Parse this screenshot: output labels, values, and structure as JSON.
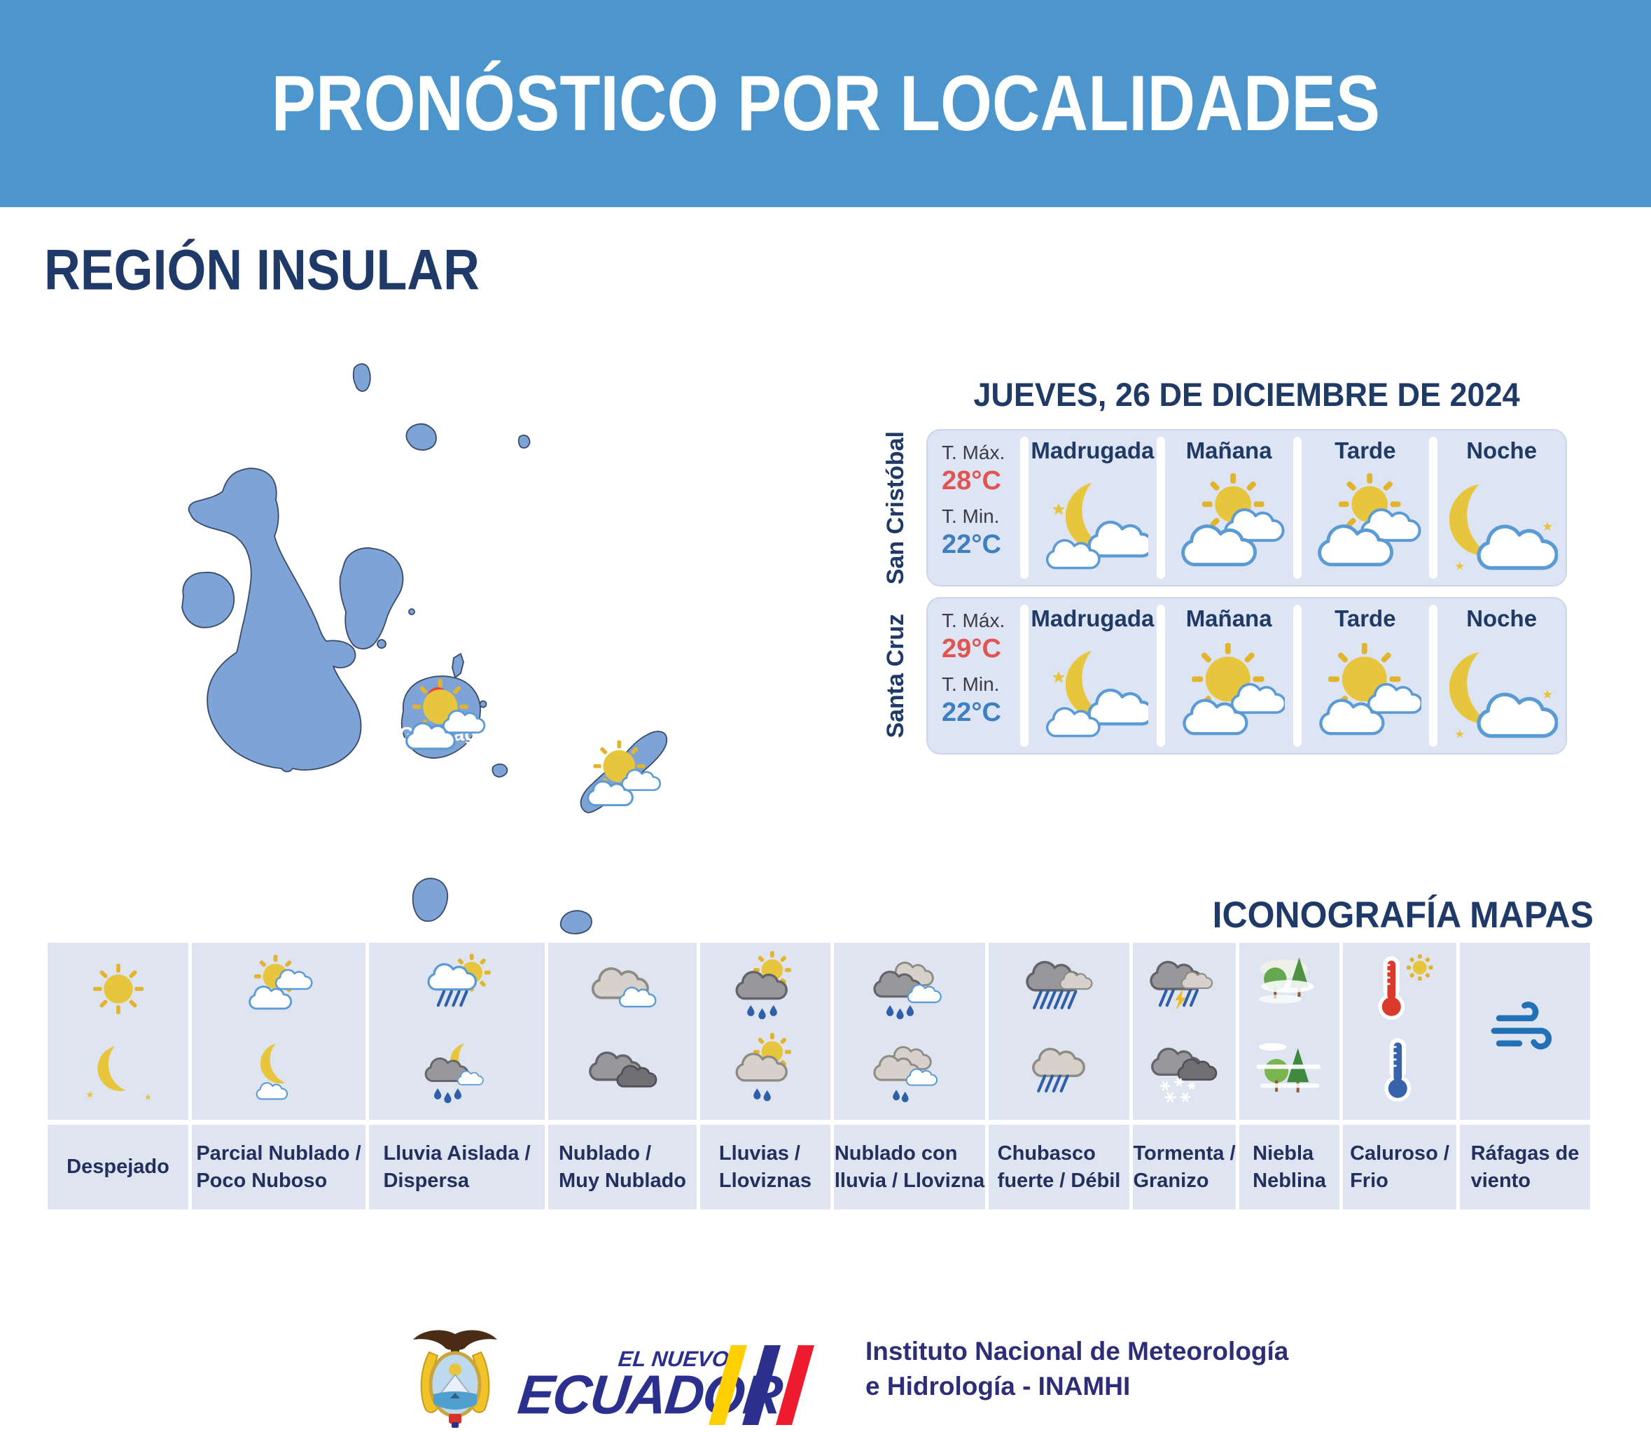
{
  "header": {
    "title": "PRONÓSTICO POR LOCALIDADES"
  },
  "region": {
    "title": "REGIÓN INSULAR"
  },
  "map": {
    "name": "galapagos-archipelago",
    "label": "Galápagos",
    "marker": "location-ring",
    "icons": [
      {
        "island": "Santa Cruz",
        "icon": "sun-clouds"
      },
      {
        "island": "San Cristóbal",
        "icon": "sun-clouds"
      }
    ]
  },
  "forecast": {
    "date": "JUEVES, 26 DE DICIEMBRE DE 2024",
    "temp_max_label": "T. Máx.",
    "temp_min_label": "T. Min.",
    "cards": [
      {
        "location": "San Cristóbal",
        "tmax": "28°C",
        "tmin": "22°C",
        "periods": [
          {
            "label": "Madrugada",
            "icon": "moon-star-clouds"
          },
          {
            "label": "Mañana",
            "icon": "sun-behind-clouds"
          },
          {
            "label": "Tarde",
            "icon": "sun-behind-clouds"
          },
          {
            "label": "Noche",
            "icon": "moon-cloud-night"
          }
        ]
      },
      {
        "location": "Santa Cruz",
        "tmax": "29°C",
        "tmin": "22°C",
        "periods": [
          {
            "label": "Madrugada",
            "icon": "moon-star-clouds"
          },
          {
            "label": "Mañana",
            "icon": "sun-clouds"
          },
          {
            "label": "Tarde",
            "icon": "sun-clouds"
          },
          {
            "label": "Noche",
            "icon": "moon-cloud-night"
          }
        ]
      }
    ]
  },
  "legend": {
    "title": "ICONOGRAFÍA MAPAS",
    "items": [
      {
        "label": "Despejado",
        "icons": [
          "sun",
          "moon-stars"
        ]
      },
      {
        "label": "Parcial Nublado /\nPoco Nuboso",
        "icons": [
          "sun-two-clouds",
          "moon-small-cloud"
        ]
      },
      {
        "label": "Lluvia Aislada /\nDispersa",
        "icons": [
          "sun-raincloud-slashes",
          "moon-darkcloud-drops"
        ]
      },
      {
        "label": "Nublado /\nMuy Nublado",
        "icons": [
          "two-light-clouds",
          "two-dark-clouds"
        ]
      },
      {
        "label": "Lluvias /\nLloviznas",
        "icons": [
          "sun-graycloud-drops3",
          "sun-tancloud-drops2"
        ]
      },
      {
        "label": "Nublado con\nlluvia / Llovizna",
        "icons": [
          "clouds-rain3",
          "clouds-rain2"
        ]
      },
      {
        "label": "Chubasco\nfuerte / Débil",
        "icons": [
          "cloud-heavy-rain",
          "cloud-light-rain"
        ]
      },
      {
        "label": "Tormenta /\nGranizo",
        "icons": [
          "storm-lightning",
          "clouds-hail"
        ]
      },
      {
        "label": "Niebla\nNeblina",
        "icons": [
          "trees-fog-1",
          "trees-fog-2"
        ]
      },
      {
        "label": "Caluroso /\nFrio",
        "icons": [
          "thermo-hot",
          "thermo-cold"
        ]
      },
      {
        "label": "Ráfagas de\nviento",
        "icons": [
          "wind"
        ]
      }
    ]
  },
  "footer": {
    "emblem": "ecuador-coat-of-arms",
    "brand_top": "EL NUEVO",
    "brand_main": "ECUADOR",
    "org_line1": "Instituto Nacional de Meteorología",
    "org_line2": "e Hidrología - INAMHI"
  },
  "colors": {
    "banner": "#4d96cd",
    "navy": "#1f3a68",
    "card_bg": "#dde4f3",
    "table_bg": "#dfe4f1",
    "temp_max": "#e05451",
    "temp_min": "#3e7fc1",
    "island": "#7ea3d7",
    "gold": "#e7c53c",
    "marker": "#e8453c",
    "brand": "#2b2f8e",
    "stripe_yellow": "#ffcf00",
    "stripe_blue": "#2d2f8f",
    "stripe_red": "#ee1b2e"
  }
}
